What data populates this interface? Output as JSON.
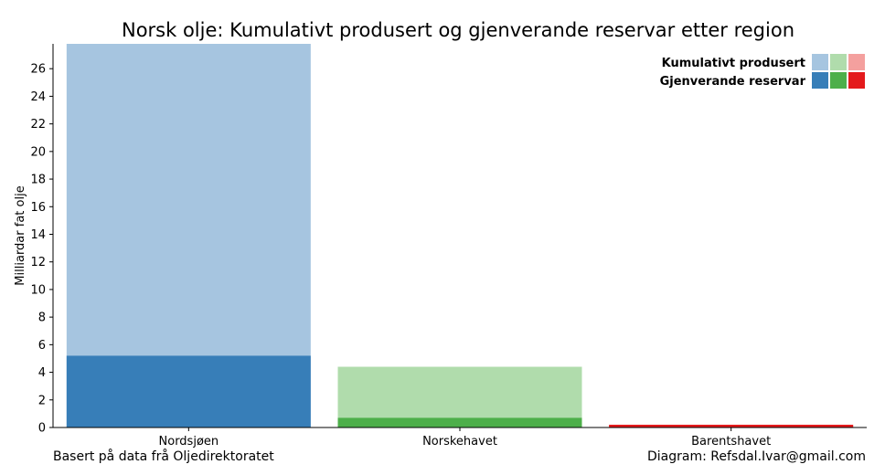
{
  "chart_data": {
    "type": "bar",
    "title": "Norsk olje: Kumulativt produsert og gjenverande reservar etter region",
    "ylabel": "Milliardar fat olje",
    "xlabel": "",
    "ylim": [
      0,
      27.8
    ],
    "yticks": [
      0,
      2,
      4,
      6,
      8,
      10,
      12,
      14,
      16,
      18,
      20,
      22,
      24,
      26
    ],
    "categories": [
      "Nordsjøen",
      "Norskehavet",
      "Barentshavet"
    ],
    "series": [
      {
        "name": "Kumulativt produsert",
        "values": [
          27.8,
          4.4,
          0.2
        ],
        "colors": [
          "#a6c5e0",
          "#b0dcac",
          "#f4a09e"
        ]
      },
      {
        "name": "Gjenverande reservar",
        "values": [
          5.2,
          0.7,
          0.2
        ],
        "colors": [
          "#377eb8",
          "#4daf4a",
          "#e41a1c"
        ]
      }
    ],
    "legend_position": "top-right",
    "grid": false
  },
  "footer": {
    "source": "Basert på data frå Oljedirektoratet",
    "credit": "Diagram: Refsdal.Ivar@gmail.com"
  }
}
